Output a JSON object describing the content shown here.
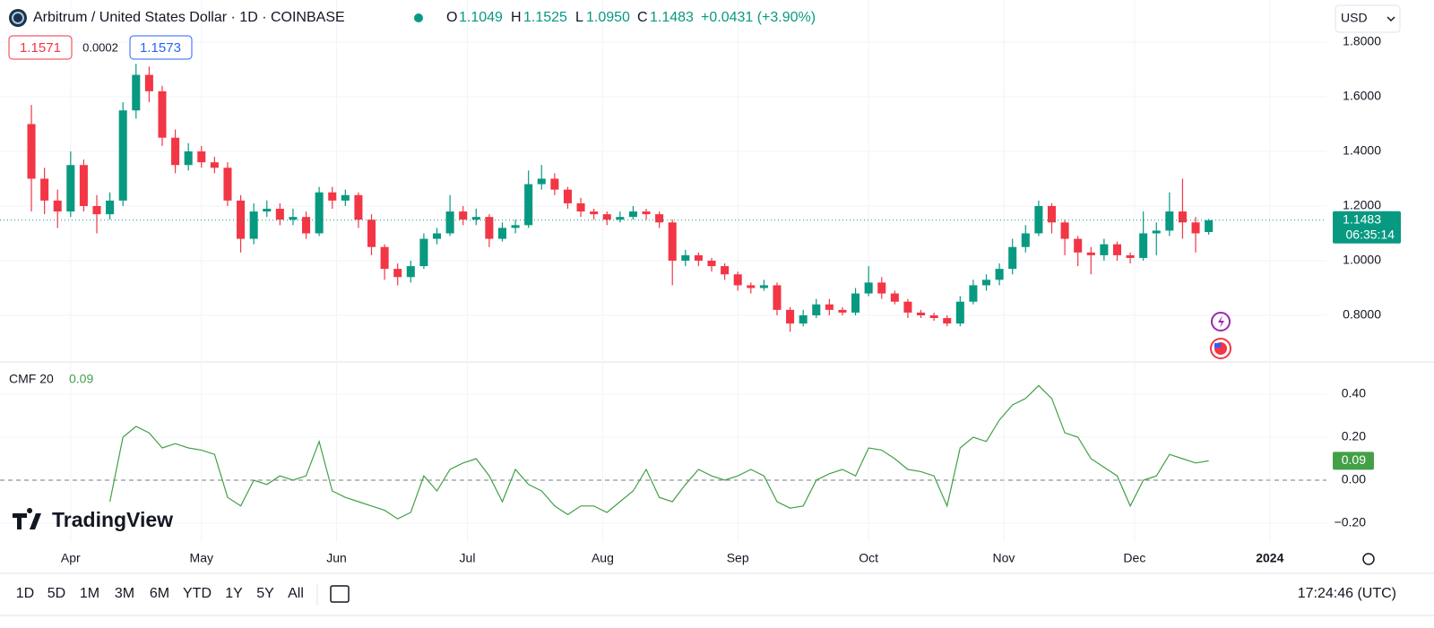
{
  "chart_data": [
    {
      "type": "candlestick",
      "title": "Arbitrum / United States Dollar · 1D · COINBASE",
      "ohlc_legend": [
        {
          "label": "O",
          "value": "1.1049"
        },
        {
          "label": "H",
          "value": "1.1525"
        },
        {
          "label": "L",
          "value": "1.0950"
        },
        {
          "label": "C",
          "value": "1.1483"
        }
      ],
      "change": "+0.0431 (+3.90%)",
      "up_color": "#089981",
      "down_color": "#f23645",
      "open": [
        1.5,
        1.3,
        1.22,
        1.18,
        1.35,
        1.2,
        1.17,
        1.22,
        1.55,
        1.68,
        1.62,
        1.45,
        1.35,
        1.4,
        1.36,
        1.34,
        1.22,
        1.08,
        1.18,
        1.19,
        1.15,
        1.16,
        1.1,
        1.25,
        1.22,
        1.24,
        1.15,
        1.05,
        0.97,
        0.94,
        0.98,
        1.08,
        1.1,
        1.18,
        1.15,
        1.16,
        1.08,
        1.12,
        1.13,
        1.28,
        1.3,
        1.26,
        1.21,
        1.18,
        1.17,
        1.15,
        1.16,
        1.18,
        1.17,
        1.14,
        1.0,
        1.02,
        1.0,
        0.98,
        0.95,
        0.91,
        0.9,
        0.91,
        0.82,
        0.77,
        0.8,
        0.84,
        0.82,
        0.81,
        0.88,
        0.92,
        0.88,
        0.85,
        0.81,
        0.8,
        0.79,
        0.77,
        0.85,
        0.91,
        0.93,
        0.97,
        1.05,
        1.1,
        1.2,
        1.14,
        1.08,
        1.03,
        1.02,
        1.06,
        1.02,
        1.01,
        1.1,
        1.11,
        1.18,
        1.14,
        1.1049
      ],
      "high": [
        1.57,
        1.34,
        1.26,
        1.4,
        1.37,
        1.24,
        1.25,
        1.58,
        1.72,
        1.71,
        1.64,
        1.48,
        1.43,
        1.42,
        1.38,
        1.36,
        1.24,
        1.21,
        1.22,
        1.21,
        1.19,
        1.18,
        1.27,
        1.27,
        1.26,
        1.25,
        1.17,
        1.06,
        0.99,
        1.0,
        1.1,
        1.12,
        1.24,
        1.2,
        1.19,
        1.17,
        1.14,
        1.15,
        1.33,
        1.35,
        1.32,
        1.27,
        1.23,
        1.19,
        1.18,
        1.18,
        1.2,
        1.19,
        1.18,
        1.15,
        1.04,
        1.03,
        1.01,
        0.99,
        0.96,
        0.92,
        0.93,
        0.92,
        0.83,
        0.82,
        0.86,
        0.86,
        0.83,
        0.9,
        0.98,
        0.94,
        0.89,
        0.86,
        0.82,
        0.81,
        0.8,
        0.87,
        0.93,
        0.95,
        0.99,
        1.08,
        1.13,
        1.22,
        1.21,
        1.15,
        1.09,
        1.05,
        1.08,
        1.07,
        1.03,
        1.18,
        1.14,
        1.25,
        1.3,
        1.16,
        1.1525
      ],
      "low": [
        1.18,
        1.17,
        1.12,
        1.16,
        1.18,
        1.1,
        1.15,
        1.2,
        1.52,
        1.58,
        1.42,
        1.32,
        1.33,
        1.34,
        1.32,
        1.2,
        1.03,
        1.06,
        1.16,
        1.13,
        1.13,
        1.08,
        1.09,
        1.19,
        1.2,
        1.12,
        1.02,
        0.93,
        0.91,
        0.92,
        0.97,
        1.06,
        1.09,
        1.13,
        1.13,
        1.05,
        1.07,
        1.1,
        1.12,
        1.26,
        1.24,
        1.19,
        1.16,
        1.15,
        1.13,
        1.14,
        1.15,
        1.15,
        1.12,
        0.91,
        0.98,
        0.98,
        0.96,
        0.93,
        0.89,
        0.88,
        0.89,
        0.8,
        0.74,
        0.76,
        0.79,
        0.8,
        0.8,
        0.8,
        0.87,
        0.86,
        0.84,
        0.79,
        0.79,
        0.78,
        0.76,
        0.76,
        0.84,
        0.89,
        0.91,
        0.95,
        1.03,
        1.09,
        1.1,
        1.02,
        0.98,
        0.95,
        1.0,
        1.0,
        0.99,
        1.0,
        1.02,
        1.09,
        1.08,
        1.03,
        1.095
      ],
      "close": [
        1.3,
        1.22,
        1.18,
        1.35,
        1.2,
        1.17,
        1.22,
        1.55,
        1.68,
        1.62,
        1.45,
        1.35,
        1.4,
        1.36,
        1.34,
        1.22,
        1.08,
        1.18,
        1.19,
        1.15,
        1.16,
        1.1,
        1.25,
        1.22,
        1.24,
        1.15,
        1.05,
        0.97,
        0.94,
        0.98,
        1.08,
        1.1,
        1.18,
        1.15,
        1.16,
        1.08,
        1.12,
        1.13,
        1.28,
        1.3,
        1.26,
        1.21,
        1.18,
        1.17,
        1.15,
        1.16,
        1.18,
        1.17,
        1.14,
        1.0,
        1.02,
        1.0,
        0.98,
        0.95,
        0.91,
        0.9,
        0.91,
        0.82,
        0.77,
        0.8,
        0.84,
        0.82,
        0.81,
        0.88,
        0.92,
        0.88,
        0.85,
        0.81,
        0.8,
        0.79,
        0.77,
        0.85,
        0.91,
        0.93,
        0.97,
        1.05,
        1.1,
        1.2,
        1.14,
        1.08,
        1.03,
        1.02,
        1.06,
        1.02,
        1.01,
        1.1,
        1.11,
        1.18,
        1.14,
        1.1,
        1.1483
      ],
      "ylim": [
        0.636,
        1.954
      ],
      "yticks": [
        {
          "value": 0.8,
          "label": "0.8000"
        },
        {
          "value": 1.0,
          "label": "1.0000"
        },
        {
          "value": 1.2,
          "label": "1.2000"
        },
        {
          "value": 1.4,
          "label": "1.4000"
        },
        {
          "value": 1.6,
          "label": "1.6000"
        },
        {
          "value": 1.8,
          "label": "1.8000"
        }
      ],
      "xlim": [
        -2.4,
        99
      ],
      "xticks": [
        {
          "value": 3,
          "label": "Apr"
        },
        {
          "value": 13,
          "label": "May"
        },
        {
          "value": 23.33,
          "label": "Jun"
        },
        {
          "value": 33.33,
          "label": "Jul"
        },
        {
          "value": 43.67,
          "label": "Aug"
        },
        {
          "value": 54,
          "label": "Sep"
        },
        {
          "value": 64,
          "label": "Oct"
        },
        {
          "value": 74.33,
          "label": "Nov"
        },
        {
          "value": 84.33,
          "label": "Dec"
        },
        {
          "value": 94.67,
          "label": "2024"
        }
      ],
      "grid": true,
      "last_price": 1.1483,
      "countdown": "06:35:14"
    },
    {
      "type": "line",
      "series": [
        {
          "name": "CMF 20",
          "color": "#43a047",
          "values": [
            null,
            null,
            null,
            null,
            null,
            null,
            -0.1,
            0.2,
            0.25,
            0.22,
            0.15,
            0.17,
            0.15,
            0.14,
            0.12,
            -0.08,
            -0.12,
            0.0,
            -0.02,
            0.02,
            0.0,
            0.02,
            0.18,
            -0.05,
            -0.08,
            -0.1,
            -0.12,
            -0.14,
            -0.18,
            -0.15,
            0.02,
            -0.05,
            0.05,
            0.08,
            0.1,
            0.02,
            -0.1,
            0.05,
            -0.02,
            -0.05,
            -0.12,
            -0.16,
            -0.12,
            -0.12,
            -0.15,
            -0.1,
            -0.05,
            0.05,
            -0.08,
            -0.1,
            -0.02,
            0.05,
            0.02,
            0.0,
            0.02,
            0.05,
            0.02,
            -0.1,
            -0.13,
            -0.12,
            0.0,
            0.03,
            0.05,
            0.02,
            0.15,
            0.14,
            0.1,
            0.05,
            0.04,
            0.02,
            -0.12,
            0.15,
            0.2,
            0.18,
            0.28,
            0.35,
            0.38,
            0.44,
            0.38,
            0.22,
            0.2,
            0.1,
            0.06,
            0.02,
            -0.12,
            0.0,
            0.02,
            0.12,
            0.1,
            0.08,
            0.09
          ]
        }
      ],
      "last_value": 0.09,
      "ylim": [
        -0.2875,
        0.5458
      ],
      "yticks": [
        {
          "value": -0.2,
          "label": "−0.20"
        },
        {
          "value": 0,
          "label": "0.00"
        },
        {
          "value": 0.2,
          "label": "0.20"
        },
        {
          "value": 0.4,
          "label": "0.40"
        }
      ],
      "xlim": [
        -2.4,
        99
      ],
      "grid": true
    }
  ],
  "currency": "USD",
  "order_buttons": {
    "sell": 1.1571,
    "spread": 0.0002,
    "buy": 1.1573
  },
  "brand": "TradingView",
  "ranges": [
    "1D",
    "5D",
    "1M",
    "3M",
    "6M",
    "YTD",
    "1Y",
    "5Y",
    "All"
  ],
  "clock": "17:24:46 (UTC)"
}
